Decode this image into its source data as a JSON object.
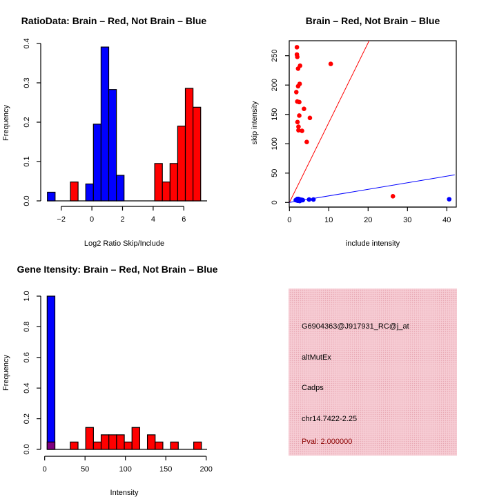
{
  "chart_data": [
    {
      "type": "bar",
      "title": "RatioData: Brain – Red, Not Brain – Blue",
      "xlabel": "Log2 Ratio Skip/Include",
      "ylabel": "Frequency",
      "xticks": [
        -2,
        0,
        2,
        4,
        6
      ],
      "xtick_labels": [
        "−2",
        "0",
        "2",
        "4",
        "6"
      ],
      "yticks": [
        0,
        0.1,
        0.2,
        0.3,
        0.4
      ],
      "ytick_labels": [
        "0.0",
        "0.1",
        "0.2",
        "0.3",
        "0.4"
      ],
      "bin_width": 0.5,
      "series": [
        {
          "name": "Not Brain",
          "color": "#0000ff",
          "bins": [
            {
              "x0": -2.9,
              "value": 0.022
            },
            {
              "x0": -0.4,
              "value": 0.043
            },
            {
              "x0": 0.1,
              "value": 0.195
            },
            {
              "x0": 0.6,
              "value": 0.391
            },
            {
              "x0": 1.1,
              "value": 0.283
            },
            {
              "x0": 1.6,
              "value": 0.065
            }
          ]
        },
        {
          "name": "Brain",
          "color": "#ff0000",
          "bins": [
            {
              "x0": -1.4,
              "value": 0.048
            },
            {
              "x0": 4.1,
              "value": 0.095
            },
            {
              "x0": 4.6,
              "value": 0.048
            },
            {
              "x0": 5.1,
              "value": 0.095
            },
            {
              "x0": 5.6,
              "value": 0.19
            },
            {
              "x0": 6.1,
              "value": 0.286
            },
            {
              "x0": 6.6,
              "value": 0.238
            }
          ]
        }
      ]
    },
    {
      "type": "scatter",
      "title": "Brain – Red, Not Brain – Blue",
      "xlabel": "include intensity",
      "ylabel": "skip intensity",
      "xlim": [
        0,
        42
      ],
      "ylim": [
        0,
        275
      ],
      "xticks": [
        0,
        10,
        20,
        30,
        40
      ],
      "xtick_labels": [
        "0",
        "10",
        "20",
        "30",
        "40"
      ],
      "yticks": [
        0,
        50,
        100,
        150,
        200,
        250
      ],
      "ytick_labels": [
        "0",
        "50",
        "100",
        "150",
        "200",
        "250"
      ],
      "series": [
        {
          "name": "Brain",
          "color": "#ff0000",
          "fit_slope": 13.6,
          "points": [
            [
              1.9,
              264.5
            ],
            [
              1.9,
              252
            ],
            [
              2.0,
              248
            ],
            [
              2.2,
              228
            ],
            [
              2.7,
              233
            ],
            [
              2.6,
              202
            ],
            [
              2.2,
              198
            ],
            [
              1.75,
              188
            ],
            [
              2.0,
              172
            ],
            [
              2.5,
              171
            ],
            [
              3.7,
              159.5
            ],
            [
              2.5,
              148
            ],
            [
              5.2,
              144
            ],
            [
              2.05,
              137
            ],
            [
              2.3,
              129
            ],
            [
              2.3,
              123
            ],
            [
              3.2,
              122
            ],
            [
              4.4,
              103
            ],
            [
              10.5,
              236
            ],
            [
              26.3,
              10.6
            ]
          ]
        },
        {
          "name": "Not Brain",
          "color": "#0000ff",
          "fit_slope": 1.12,
          "points": [
            [
              1.6,
              4
            ],
            [
              1.9,
              5
            ],
            [
              2.1,
              3
            ],
            [
              2.3,
              6
            ],
            [
              2.5,
              4
            ],
            [
              2.7,
              5
            ],
            [
              2.9,
              3.5
            ],
            [
              3.1,
              4.5
            ],
            [
              3.4,
              4
            ],
            [
              2.0,
              6
            ],
            [
              2.6,
              2.5
            ],
            [
              2.2,
              4.5
            ],
            [
              5.0,
              5
            ],
            [
              6.1,
              5
            ],
            [
              40.6,
              5.5
            ]
          ]
        }
      ]
    },
    {
      "type": "bar",
      "title": "Gene Itensity: Brain – Red, Not Brain – Blue",
      "xlabel": "Intensity",
      "ylabel": "Frequency",
      "xticks": [
        0,
        50,
        100,
        150,
        200
      ],
      "xtick_labels": [
        "0",
        "50",
        "100",
        "150",
        "200"
      ],
      "yticks": [
        0,
        0.2,
        0.4,
        0.6,
        0.8,
        1.0
      ],
      "ytick_labels": [
        "0.0",
        "0.2",
        "0.4",
        "0.6",
        "0.8",
        "1.0"
      ],
      "bin_width": 9.55,
      "overlap_color": "#7f007f",
      "series": [
        {
          "name": "Not Brain",
          "color": "#0000ff",
          "bins": [
            {
              "x0": 3.1,
              "value": 1.0
            }
          ]
        },
        {
          "name": "Brain",
          "color": "#ff0000",
          "bins": [
            {
              "x0": 3.1,
              "value": 0.048
            },
            {
              "x0": 31.75,
              "value": 0.048
            },
            {
              "x0": 50.85,
              "value": 0.143
            },
            {
              "x0": 60.4,
              "value": 0.048
            },
            {
              "x0": 69.95,
              "value": 0.095
            },
            {
              "x0": 79.5,
              "value": 0.095
            },
            {
              "x0": 89.05,
              "value": 0.095
            },
            {
              "x0": 98.6,
              "value": 0.048
            },
            {
              "x0": 108.15,
              "value": 0.143
            },
            {
              "x0": 127.25,
              "value": 0.095
            },
            {
              "x0": 136.8,
              "value": 0.048
            },
            {
              "x0": 155.9,
              "value": 0.048
            },
            {
              "x0": 184.55,
              "value": 0.048
            }
          ]
        }
      ]
    }
  ],
  "info_box": {
    "probe_id": "G6904363@J917931_RC@j_at",
    "event_type": "altMutEx",
    "gene": "Cadps",
    "location": "chr14.7422-2.25",
    "pval": "Pval: 2.000000",
    "background_color": "#f2c4cc",
    "pval_color": "#8b0000"
  }
}
